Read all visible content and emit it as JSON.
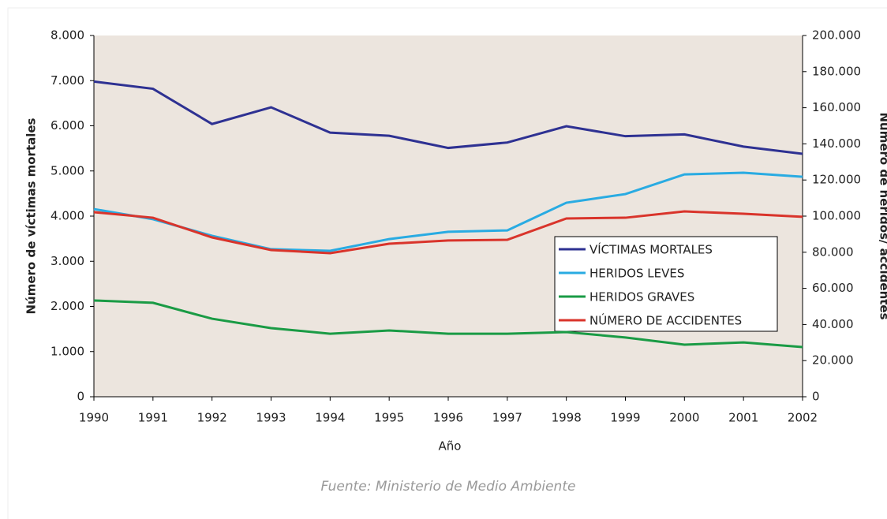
{
  "chart_data": {
    "type": "line",
    "x_label": "Año",
    "y_label": "Número de víctimas mortales",
    "y2_label": "Número de heridos/ accidentes",
    "source": "Fuente: Ministerio de Medio Ambiente",
    "x": [
      1990,
      1991,
      1992,
      1993,
      1994,
      1995,
      1996,
      1997,
      1998,
      1999,
      2000,
      2001,
      2002
    ],
    "xlim": [
      1990,
      2002
    ],
    "xticks": [
      1990,
      1991,
      1992,
      1993,
      1994,
      1995,
      1996,
      1997,
      1998,
      1999,
      2000,
      2001,
      2002
    ],
    "ylim": [
      0,
      8000
    ],
    "yticks": [
      0,
      {
        "value": 1000,
        "label": "1.000"
      },
      {
        "value": 2000,
        "label": "2.000"
      },
      {
        "value": 3000,
        "label": "3.000"
      },
      {
        "value": 4000,
        "label": "4.000"
      },
      {
        "value": 5000,
        "label": "5.000"
      },
      {
        "value": 6000,
        "label": "6.000"
      },
      {
        "value": 7000,
        "label": "7.000"
      },
      {
        "value": 8000,
        "label": "8.000"
      }
    ],
    "y2lim": [
      0,
      200000
    ],
    "y2ticks": [
      0,
      {
        "value": 20000,
        "label": "20.000"
      },
      {
        "value": 40000,
        "label": "40.000"
      },
      {
        "value": 60000,
        "label": "60.000"
      },
      {
        "value": 80000,
        "label": "80.000"
      },
      {
        "value": 100000,
        "label": "100.000"
      },
      {
        "value": 120000,
        "label": "120.000"
      },
      {
        "value": 140000,
        "label": "140.000"
      },
      {
        "value": 160000,
        "label": "160.000"
      },
      {
        "value": 180000,
        "label": "180.000"
      },
      {
        "value": 200000,
        "label": "200.000"
      }
    ],
    "series": [
      {
        "name": "VÍCTIMAS MORTALES",
        "color": "#2e3192",
        "values": [
          6980,
          6820,
          6040,
          6410,
          5850,
          5780,
          5510,
          5630,
          5990,
          5770,
          5810,
          5540,
          5380
        ]
      },
      {
        "name": "HERIDOS LEVES",
        "color": "#29abe2",
        "axis": "y2",
        "values": [
          103900,
          98300,
          89100,
          81700,
          80800,
          87300,
          91300,
          92100,
          107400,
          112200,
          123100,
          124000,
          121800
        ]
      },
      {
        "name": "HERIDOS GRAVES",
        "color": "#1a9b45",
        "axis": "y2",
        "values": [
          53300,
          52000,
          43200,
          38000,
          34900,
          36700,
          34900,
          34900,
          35800,
          32800,
          28800,
          30100,
          27500
        ]
      },
      {
        "name": "NÚMERO DE ACCIDENTES",
        "color": "#d9342b",
        "axis": "y2",
        "values": [
          102200,
          99100,
          88200,
          81200,
          79500,
          84700,
          86500,
          86900,
          98700,
          99100,
          102600,
          101300,
          99600
        ]
      }
    ]
  }
}
